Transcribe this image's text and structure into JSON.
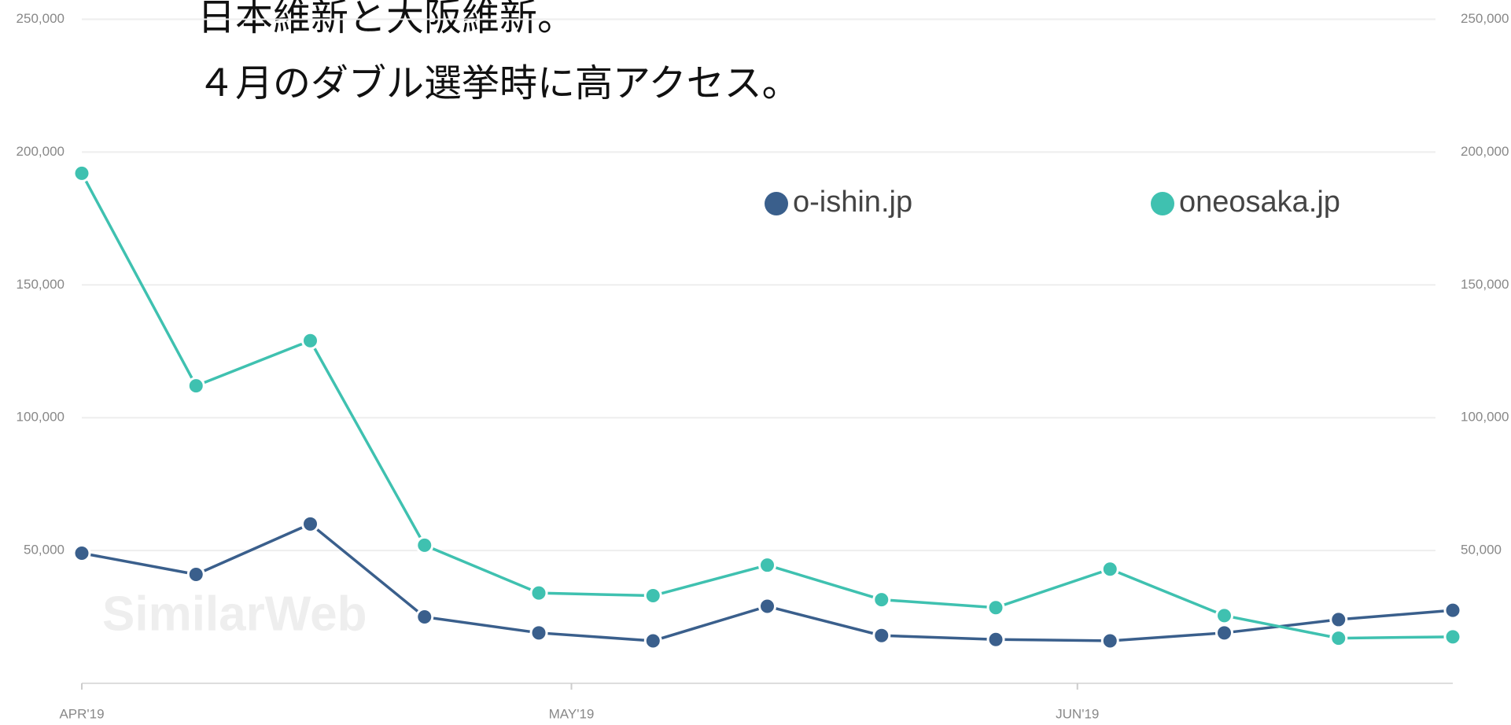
{
  "chart_data": {
    "type": "line",
    "title_lines": [
      "日本維新と大阪維新。",
      "４月のダブル選挙時に高アクセス。"
    ],
    "watermark": "SimilarWeb",
    "x": [
      0,
      7,
      14,
      21,
      28,
      35,
      42,
      49,
      56,
      63,
      70,
      77,
      84
    ],
    "xlim": [
      0,
      84
    ],
    "xticks": [
      {
        "value": 0,
        "label": "APR'19"
      },
      {
        "value": 30,
        "label": "MAY'19"
      },
      {
        "value": 61,
        "label": "JUN'19"
      }
    ],
    "series": [
      {
        "name": "o-ishin.jp",
        "color": "#3a5f8c",
        "values": [
          49000,
          41000,
          60000,
          25000,
          19000,
          16000,
          29000,
          18000,
          16500,
          16000,
          19000,
          24000,
          27500
        ]
      },
      {
        "name": "oneosaka.jp",
        "color": "#3fc1b0",
        "values": [
          192000,
          112000,
          129000,
          52000,
          34000,
          33000,
          44500,
          31500,
          28500,
          43000,
          25500,
          17000,
          17500
        ]
      }
    ],
    "ylim": [
      0,
      250000
    ],
    "yticks": [
      {
        "value": 50000,
        "label": "50,000"
      },
      {
        "value": 100000,
        "label": "100,000"
      },
      {
        "value": 150000,
        "label": "150,000"
      },
      {
        "value": 200000,
        "label": "200,000"
      },
      {
        "value": 250000,
        "label": "250,000"
      }
    ],
    "y2lim": [
      0,
      250000
    ],
    "y2ticks": [
      {
        "value": 50000,
        "label": "50,000"
      },
      {
        "value": 100000,
        "label": "100,000"
      },
      {
        "value": 150000,
        "label": "150,000"
      },
      {
        "value": 200000,
        "label": "200,000"
      },
      {
        "value": 250000,
        "label": "250,000"
      }
    ],
    "grid": true,
    "legend": "top-right"
  }
}
